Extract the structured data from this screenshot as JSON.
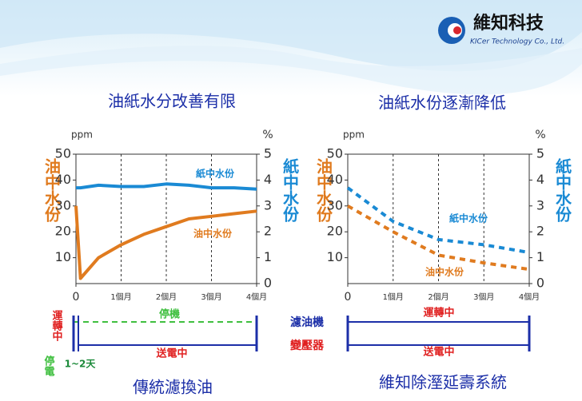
{
  "logo": {
    "name": "維知科技",
    "subtitle": "KICer Technology Co., Ltd."
  },
  "chart_data": [
    {
      "type": "line",
      "title": "油紙水分改善有限",
      "y_unit": "ppm",
      "y2_unit": "%",
      "ylabel": "油中水份",
      "y2label": "紙中水份",
      "line_style": "solid",
      "x": [
        0,
        0.1,
        0.5,
        1,
        1.5,
        2,
        2.5,
        3,
        3.5,
        4
      ],
      "xlim": [
        0,
        4
      ],
      "xticks": [
        0,
        {
          "value": 1,
          "label": "1個月"
        },
        {
          "value": 2,
          "label": "2個月"
        },
        {
          "value": 3,
          "label": "3個月"
        },
        {
          "value": 4,
          "label": "4個月"
        }
      ],
      "ylim": [
        0,
        50
      ],
      "yticks": [
        10,
        20,
        30,
        40,
        50
      ],
      "y2lim": [
        0,
        5
      ],
      "y2ticks": [
        0,
        1,
        2,
        3,
        4,
        5
      ],
      "series": [
        {
          "name": "紙中水份",
          "color": "#1a8ad4",
          "axis": "y2",
          "values": [
            3.7,
            3.7,
            3.8,
            3.75,
            3.75,
            3.85,
            3.8,
            3.7,
            3.7,
            3.65
          ]
        },
        {
          "name": "油中水份",
          "color": "#e07b1f",
          "values": [
            30,
            2,
            10,
            15,
            19,
            22,
            25,
            26,
            27,
            28
          ]
        }
      ]
    },
    {
      "type": "line",
      "title": "油紙水份逐漸降低",
      "y_unit": "ppm",
      "y2_unit": "%",
      "ylabel": "油中水份",
      "y2label": "紙中水份",
      "line_style": "dashed",
      "x": [
        0,
        1,
        2,
        3,
        4
      ],
      "xlim": [
        0,
        4
      ],
      "xticks": [
        0,
        {
          "value": 1,
          "label": "1個月"
        },
        {
          "value": 2,
          "label": "2個月"
        },
        {
          "value": 3,
          "label": "3個月"
        },
        {
          "value": 4,
          "label": "4個月"
        }
      ],
      "ylim": [
        0,
        50
      ],
      "yticks": [
        10,
        20,
        30,
        40,
        50
      ],
      "y2lim": [
        0,
        5
      ],
      "y2ticks": [
        0,
        1,
        2,
        3,
        4,
        5
      ],
      "series": [
        {
          "name": "紙中水份",
          "color": "#1a8ad4",
          "axis": "y2",
          "values": [
            3.7,
            2.4,
            1.7,
            1.5,
            1.2
          ]
        },
        {
          "name": "油中水份",
          "color": "#e07b1f",
          "values": [
            30,
            20,
            11,
            8,
            5.5
          ]
        }
      ]
    }
  ],
  "timelines": [
    {
      "labels": [
        "運轉中",
        "停機",
        "停電",
        "1~2天",
        "送電中"
      ],
      "caption": "傳統濾換油"
    },
    {
      "labels": [
        "運轉中",
        "送電中"
      ],
      "caption": "維知除溼延壽系統"
    }
  ],
  "row_labels": [
    "濾油機",
    "變壓器"
  ]
}
